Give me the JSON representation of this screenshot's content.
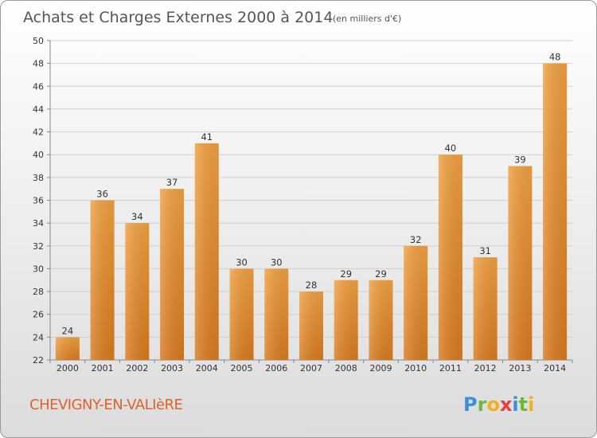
{
  "chart_data": {
    "type": "bar",
    "title": "Achats et Charges Externes 2000 à 2014",
    "subtitle": "(en milliers d'€)",
    "categories": [
      "2000",
      "2001",
      "2002",
      "2003",
      "2004",
      "2005",
      "2006",
      "2007",
      "2008",
      "2009",
      "2010",
      "2011",
      "2012",
      "2013",
      "2014"
    ],
    "values": [
      24,
      36,
      34,
      37,
      41,
      30,
      30,
      28,
      29,
      29,
      32,
      40,
      31,
      39,
      48
    ],
    "ylim": [
      22,
      50
    ],
    "yticks": [
      22,
      24,
      26,
      28,
      30,
      32,
      34,
      36,
      38,
      40,
      42,
      44,
      46,
      48,
      50
    ],
    "grid": "horizontal",
    "bar_color": "#f0a040",
    "bar_color_dark": "#d87a1e"
  },
  "footer": {
    "commune": "CHEVIGNY-EN-VALIèRE",
    "brand_letters": [
      {
        "char": "P",
        "color": "#3a8fd8"
      },
      {
        "char": "r",
        "color": "#6aba3a"
      },
      {
        "char": "o",
        "color": "#f0b020"
      },
      {
        "char": "x",
        "color": "#e04040"
      },
      {
        "char": "i",
        "color": "#3a8fd8"
      },
      {
        "char": "t",
        "color": "#6aba3a"
      },
      {
        "char": "i",
        "color": "#f0b020"
      }
    ]
  }
}
